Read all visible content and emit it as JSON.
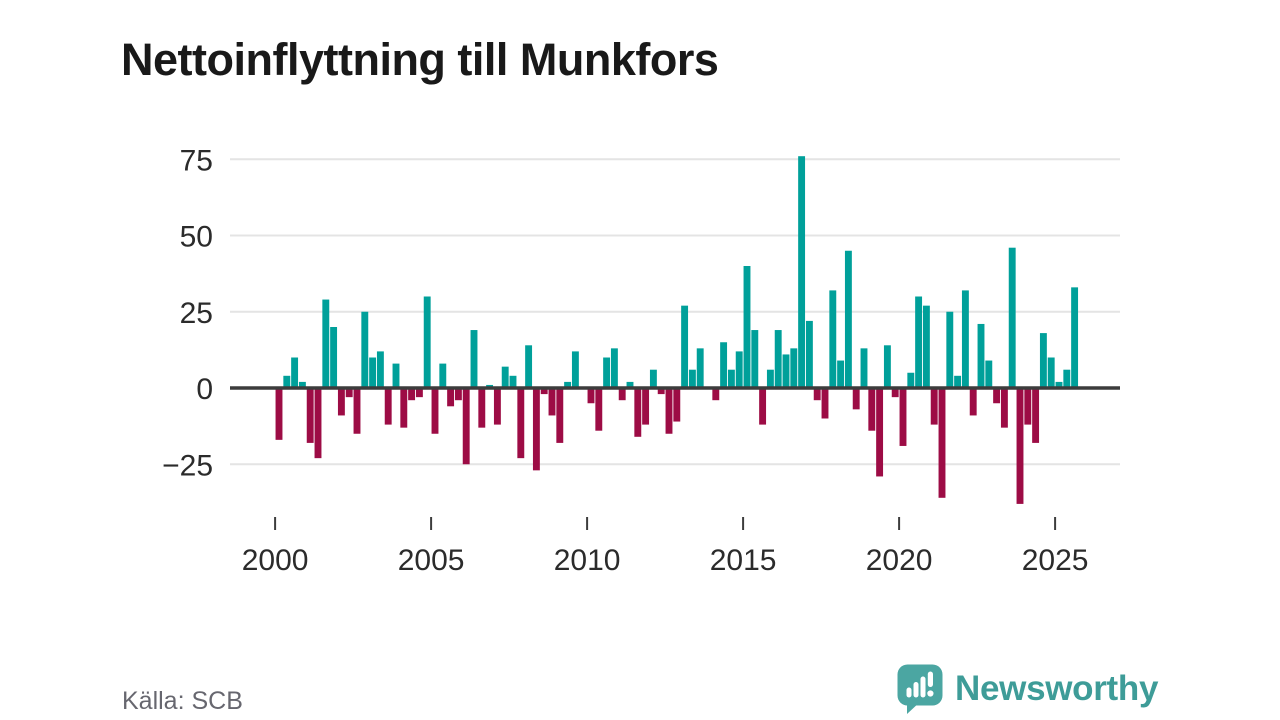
{
  "title": "Nettoinflyttning till Munkfors",
  "footer": {
    "source": "Källa: SCB",
    "brand": "Newsworthy"
  },
  "brand": {
    "icon": "newsworthy-speech-bubble-chart-icon",
    "bubble_color": "#4BA6A2",
    "text_color": "#3E9C98"
  },
  "chart_data": {
    "type": "bar",
    "title": "Nettoinflyttning till Munkfors",
    "x_freq": "quarterly",
    "x_start": "2000Q1",
    "x_end": "2025Q3",
    "x_tick_labels": [
      "2000",
      "2005",
      "2010",
      "2015",
      "2020",
      "2025"
    ],
    "y_tick_labels": [
      "75",
      "50",
      "25",
      "0",
      "−25"
    ],
    "ylim": [
      -40,
      80
    ],
    "grid": true,
    "legend_position": "none",
    "positive_color": "#00A09A",
    "negative_color": "#9D0C45",
    "zero_line_color": "#3C3C3C",
    "gridline_color": "#E4E4E4",
    "axis_text_color": "#2B2B2B",
    "values_by_year": [
      {
        "year": 2000,
        "q": [
          -17,
          4,
          10,
          2
        ]
      },
      {
        "year": 2001,
        "q": [
          -18,
          -23,
          29,
          20
        ]
      },
      {
        "year": 2002,
        "q": [
          -9,
          -3,
          -15,
          25
        ]
      },
      {
        "year": 2003,
        "q": [
          10,
          12,
          -12,
          8
        ]
      },
      {
        "year": 2004,
        "q": [
          -13,
          -4,
          -3,
          30
        ]
      },
      {
        "year": 2005,
        "q": [
          -15,
          8,
          -6,
          -4
        ]
      },
      {
        "year": 2006,
        "q": [
          -25,
          19,
          -13,
          1
        ]
      },
      {
        "year": 2007,
        "q": [
          -12,
          7,
          4,
          -23
        ]
      },
      {
        "year": 2008,
        "q": [
          14,
          -27,
          -2,
          -9
        ]
      },
      {
        "year": 2009,
        "q": [
          -18,
          2,
          12,
          0
        ]
      },
      {
        "year": 2010,
        "q": [
          -5,
          -14,
          10,
          13
        ]
      },
      {
        "year": 2011,
        "q": [
          -4,
          2,
          -16,
          -12
        ]
      },
      {
        "year": 2012,
        "q": [
          6,
          -2,
          -15,
          -11
        ]
      },
      {
        "year": 2013,
        "q": [
          27,
          6,
          13,
          0
        ]
      },
      {
        "year": 2014,
        "q": [
          -4,
          15,
          6,
          12
        ]
      },
      {
        "year": 2015,
        "q": [
          40,
          19,
          -12,
          6
        ]
      },
      {
        "year": 2016,
        "q": [
          19,
          11,
          13,
          76
        ]
      },
      {
        "year": 2017,
        "q": [
          22,
          -4,
          -10,
          32
        ]
      },
      {
        "year": 2018,
        "q": [
          9,
          45,
          -7,
          13
        ]
      },
      {
        "year": 2019,
        "q": [
          -14,
          -29,
          14,
          -3
        ]
      },
      {
        "year": 2020,
        "q": [
          -19,
          5,
          30,
          27
        ]
      },
      {
        "year": 2021,
        "q": [
          -12,
          -36,
          25,
          4
        ]
      },
      {
        "year": 2022,
        "q": [
          32,
          -9,
          21,
          9
        ]
      },
      {
        "year": 2023,
        "q": [
          -5,
          -13,
          46,
          -38
        ]
      },
      {
        "year": 2024,
        "q": [
          -12,
          -18,
          18,
          10
        ]
      },
      {
        "year": 2025,
        "q": [
          2,
          6,
          33
        ]
      }
    ]
  }
}
